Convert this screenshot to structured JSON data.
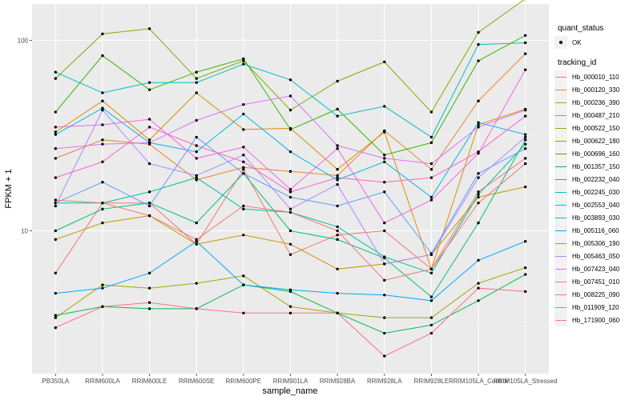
{
  "chart_data": {
    "type": "line",
    "xlabel": "sample_name",
    "ylabel": "FPKM + 1",
    "yscale": "log10",
    "ylim": [
      1.78,
      155
    ],
    "y_ticks": [
      10,
      100
    ],
    "y_tick_labels": [
      "10",
      "100"
    ],
    "grid": true,
    "legend_position": "right",
    "categories": [
      "PB350LA",
      "RRIM600LA",
      "RRIM600LE",
      "RRIM600SE",
      "RRIM600PE",
      "RRIM901LA",
      "RRIM928BA",
      "RRIM928LA",
      "RRIM928LE",
      "RRIM105LA_Control",
      "RRIM105LA_Stressed"
    ],
    "x_tick_labels": [
      "PB350LA",
      "RRIM600LA",
      "RRIM600LE",
      "RRIM600SE",
      "RRIM600PE",
      "RRIM901LA",
      "RRIM928BA",
      "RRIM928LA",
      "RRIM928LE",
      "RRIM105LA_Control",
      "RRIM105LA_Stressed"
    ],
    "shape_legend": {
      "title": "quant_status",
      "entries": [
        "OK"
      ]
    },
    "color_legend_title": "tracking_id",
    "series": [
      {
        "name": "Hb_000010_110",
        "color": "#F8766D",
        "values": [
          6.0,
          14.0,
          14.0,
          8.5,
          21.0,
          7.5,
          9.5,
          10.0,
          6.3,
          16.0,
          24.0
        ]
      },
      {
        "name": "Hb_000120_330",
        "color": "#EA8331",
        "values": [
          24.0,
          30.0,
          28.5,
          18.5,
          21.5,
          20.5,
          19.5,
          33.5,
          21.0,
          48.0,
          85.0
        ]
      },
      {
        "name": "Hb_000236_390",
        "color": "#D89000",
        "values": [
          33.0,
          48.0,
          30.0,
          53.0,
          34.0,
          34.5,
          21.0,
          33.0,
          6.3,
          36.0,
          43.5
        ]
      },
      {
        "name": "Hb_000487_210",
        "color": "#C09B00",
        "values": [
          9.0,
          11.0,
          12.0,
          8.5,
          9.5,
          8.5,
          6.3,
          6.7,
          7.5,
          15.0,
          17.0
        ]
      },
      {
        "name": "Hb_000522_150",
        "color": "#A3A500",
        "values": [
          3.5,
          5.2,
          5.0,
          5.3,
          5.8,
          4.0,
          3.7,
          3.5,
          3.5,
          5.3,
          6.4
        ]
      },
      {
        "name": "Hb_000622_180",
        "color": "#7CAE00",
        "values": [
          63.0,
          108.0,
          115.0,
          63.0,
          78.0,
          43.0,
          61.0,
          77.0,
          42.0,
          110.0,
          165.0
        ]
      },
      {
        "name": "Hb_000696_160",
        "color": "#39B600",
        "values": [
          42.0,
          83.0,
          55.0,
          68.0,
          80.0,
          34.0,
          43.5,
          25.0,
          29.0,
          78.0,
          106.0
        ]
      },
      {
        "name": "Hb_001357_150",
        "color": "#00BB4E",
        "values": [
          3.6,
          4.0,
          3.9,
          3.9,
          5.2,
          4.8,
          3.7,
          2.9,
          3.2,
          4.3,
          5.9
        ]
      },
      {
        "name": "Hb_002232_040",
        "color": "#00BF7D",
        "values": [
          10.0,
          13.0,
          14.0,
          11.0,
          20.0,
          10.0,
          9.0,
          7.2,
          4.5,
          11.0,
          30.0
        ]
      },
      {
        "name": "Hb_002245_030",
        "color": "#00C1A3",
        "values": [
          14.0,
          14.0,
          16.0,
          19.0,
          13.0,
          12.5,
          10.5,
          7.3,
          6.0,
          15.5,
          28.5
        ]
      },
      {
        "name": "Hb_002553_040",
        "color": "#00BFC4",
        "values": [
          68.0,
          53.0,
          60.0,
          60.0,
          75.0,
          62.0,
          40.0,
          45.0,
          31.0,
          95.0,
          97.0
        ]
      },
      {
        "name": "Hb_003893_030",
        "color": "#00B8E7",
        "values": [
          32.0,
          44.0,
          29.0,
          26.0,
          41.0,
          26.0,
          18.5,
          23.0,
          15.0,
          37.0,
          32.0
        ]
      },
      {
        "name": "Hb_005116_060",
        "color": "#00A9FF",
        "values": [
          4.7,
          5.0,
          6.0,
          8.8,
          5.2,
          4.9,
          4.7,
          4.6,
          4.3,
          7.0,
          8.8
        ]
      },
      {
        "name": "Hb_005306_190",
        "color": "#619CFF",
        "values": [
          14.0,
          18.0,
          13.5,
          31.0,
          20.0,
          15.0,
          13.5,
          16.0,
          7.6,
          20.0,
          27.0
        ]
      },
      {
        "name": "Hb_005463_050",
        "color": "#AE87FF",
        "values": [
          13.5,
          43.0,
          22.5,
          19.5,
          25.0,
          13.0,
          17.5,
          6.7,
          7.5,
          19.0,
          31.0
        ]
      },
      {
        "name": "Hb_007423_040",
        "color": "#DB72FB",
        "values": [
          27.0,
          28.5,
          29.0,
          38.0,
          46.0,
          51.0,
          28.0,
          24.0,
          22.5,
          35.0,
          43.0
        ]
      },
      {
        "name": "Hb_007451_010",
        "color": "#F564E3",
        "values": [
          35.0,
          36.0,
          38.5,
          24.0,
          27.5,
          16.5,
          27.0,
          11.0,
          14.5,
          25.5,
          70.0
        ]
      },
      {
        "name": "Hb_008225_090",
        "color": "#FF61C3",
        "values": [
          19.0,
          23.0,
          35.0,
          28.0,
          23.0,
          16.0,
          19.0,
          18.0,
          19.0,
          26.0,
          40.0
        ]
      },
      {
        "name": "Hb_011909_120",
        "color": "#FF6C90",
        "values": [
          3.1,
          4.0,
          4.2,
          3.9,
          3.7,
          3.7,
          3.7,
          2.2,
          2.9,
          5.0,
          4.8
        ]
      },
      {
        "name": "Hb_171900_060",
        "color": "#F8766D",
        "values": [
          14.5,
          14.0,
          12.0,
          9.0,
          13.5,
          12.5,
          10.0,
          5.5,
          6.3,
          14.0,
          22.5
        ]
      }
    ]
  }
}
